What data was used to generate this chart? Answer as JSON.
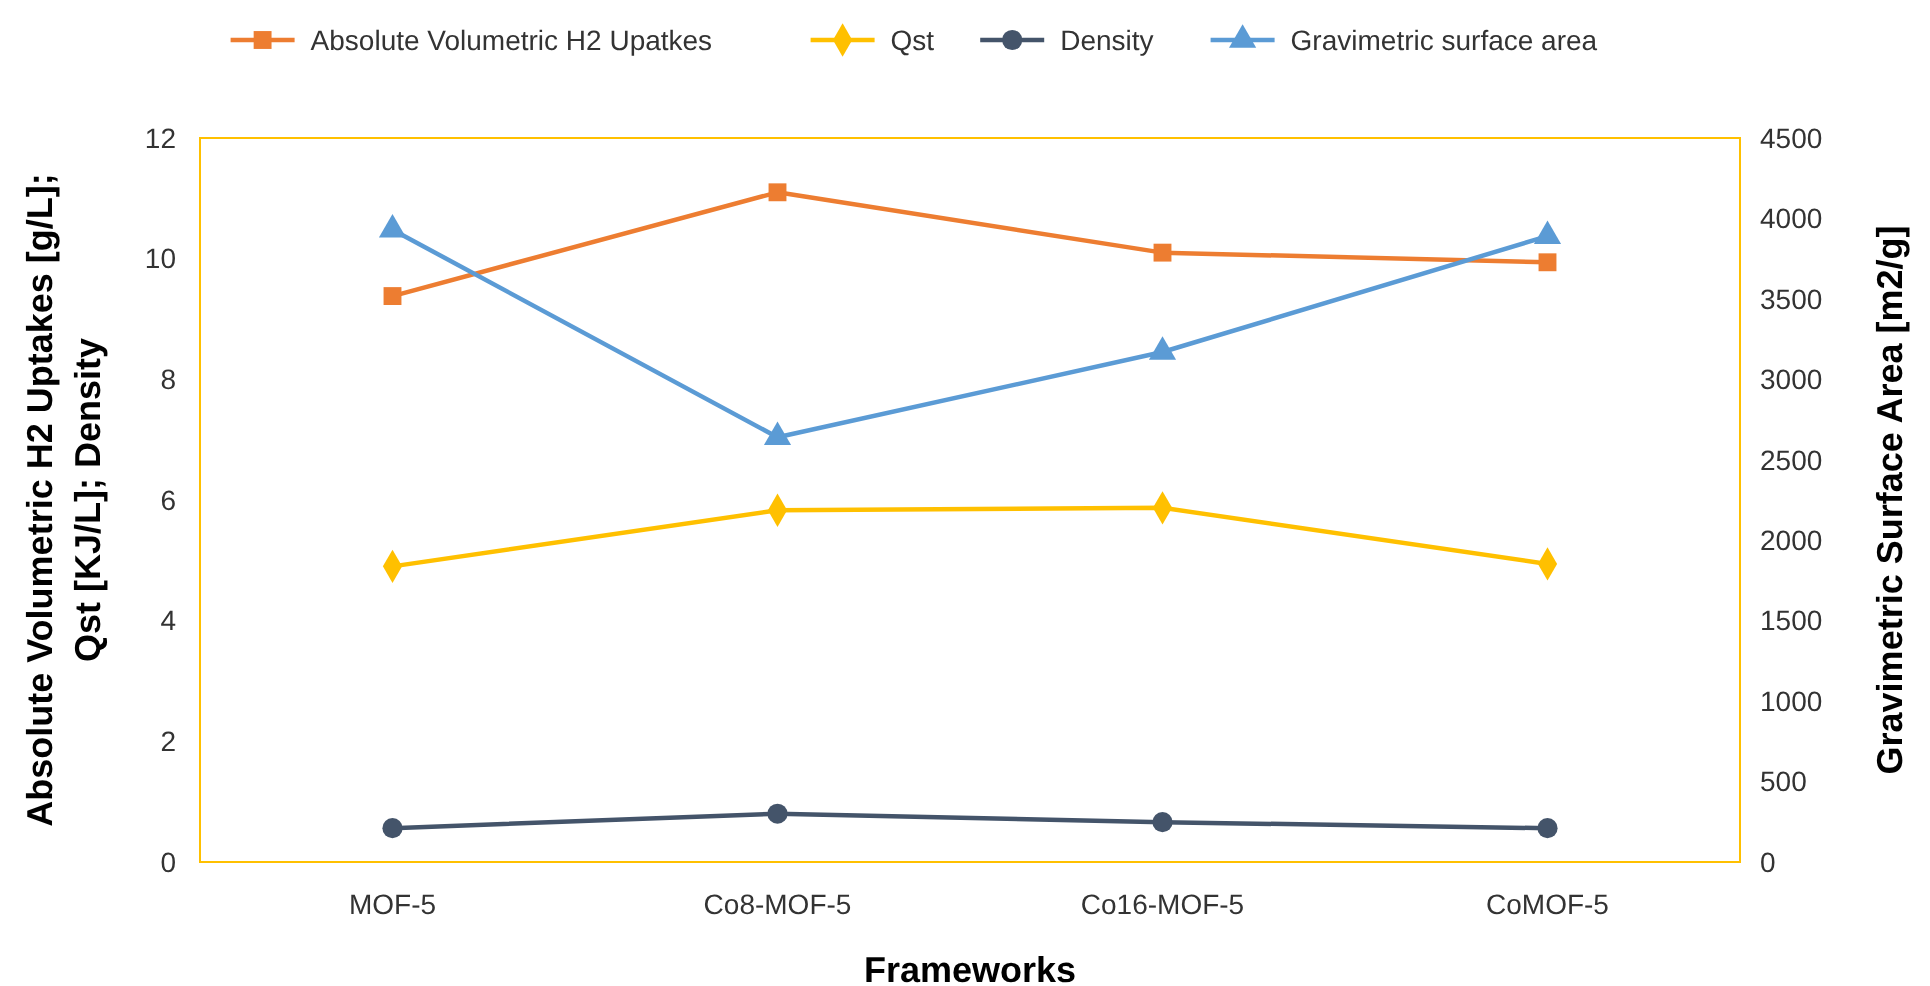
{
  "chart_data": {
    "type": "line",
    "xlabel": "Frameworks",
    "ylabel": "Absolute Volumetric H2 Uptakes [g/L];\nQst [KJ/L]; Density",
    "y2label": "Gravimetric Surface Area [m2/g]",
    "categories": [
      "MOF-5",
      "Co8-MOF-5",
      "Co16-MOF-5",
      "CoMOF-5"
    ],
    "series": [
      {
        "name": "Absolute Volumetric H2 Upatkes",
        "color": "#ed7d31",
        "marker": "square",
        "values": [
          9.38,
          11.1,
          10.1,
          9.94
        ]
      },
      {
        "name": "Qst",
        "color": "#ffc000",
        "marker": "diamond",
        "values": [
          4.9,
          5.83,
          5.87,
          4.94
        ]
      },
      {
        "name": "Density",
        "color": "#44546a",
        "marker": "circle",
        "values": [
          0.56,
          0.8,
          0.66,
          0.56
        ]
      },
      {
        "name": "Gravimetric surface area",
        "color": "#5b9bd5",
        "marker": "triangle",
        "axis": "y2",
        "values": [
          3930,
          2640,
          3170,
          3890
        ]
      }
    ],
    "ylim": [
      0,
      12
    ],
    "yticks": [
      0,
      2,
      4,
      6,
      8,
      10,
      12
    ],
    "y2lim": [
      0,
      4500
    ],
    "y2ticks": [
      0,
      500,
      1000,
      1500,
      2000,
      2500,
      3000,
      3500,
      4000,
      4500
    ],
    "grid": false,
    "legend": "top"
  }
}
